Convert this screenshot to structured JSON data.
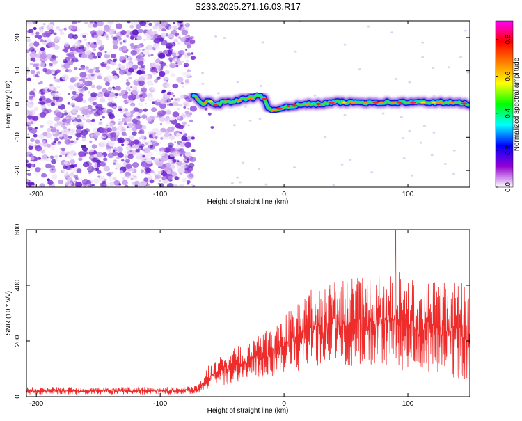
{
  "title": "S233.2025.271.16.03.R17",
  "chart_data": [
    {
      "type": "heatmap",
      "xlabel": "Height of straight line (km)",
      "ylabel": "Frequency (Hz)",
      "xlim": [
        -208,
        150
      ],
      "ylim": [
        -25,
        25
      ],
      "xticks": [
        -200,
        -100,
        0,
        100
      ],
      "yticks": [
        -20,
        -10,
        0,
        10,
        20
      ],
      "noise_region_x": [
        -208,
        -73
      ],
      "signal_track": {
        "x": [
          -73,
          -66,
          -60,
          -55,
          -50,
          -45,
          -40,
          -35,
          -30,
          -25,
          -20,
          -16,
          -13,
          -10,
          -5,
          0,
          5,
          10,
          20,
          30,
          40,
          50,
          60,
          70,
          80,
          90,
          100,
          110,
          120,
          130,
          140,
          150
        ],
        "freq": [
          2.5,
          0,
          1.0,
          -0.5,
          0.5,
          1.0,
          0.5,
          1.5,
          1.5,
          2.0,
          3.0,
          1.5,
          -1.5,
          -2.0,
          -1.5,
          -1.0,
          -0.5,
          -0.5,
          0,
          0,
          0.5,
          0.5,
          0.5,
          0.5,
          0.5,
          0.5,
          0.5,
          0.5,
          0.5,
          0.5,
          0.3,
          0
        ]
      },
      "colorbar": {
        "label": "Normalized spectral amplitude",
        "range": [
          0.0,
          0.9
        ],
        "ticks": [
          0.0,
          0.2,
          0.4,
          0.6,
          0.8
        ],
        "tick_labels": [
          "0.0",
          "0.2",
          "0.4",
          "0.6",
          "0.8"
        ],
        "colors": [
          "#ffffff",
          "#9400d3",
          "#0000ff",
          "#00ffff",
          "#00ff00",
          "#ffff00",
          "#ff7f00",
          "#ff0000",
          "#ff00ff"
        ]
      }
    },
    {
      "type": "line",
      "xlabel": "Height of straight line (km)",
      "ylabel": "SNR (10 * v/v)",
      "xlim": [
        -208,
        150
      ],
      "ylim": [
        0,
        600
      ],
      "xticks": [
        -200,
        -100,
        0,
        100
      ],
      "yticks": [
        0,
        200,
        400,
        600
      ],
      "line_color": "#ee2c2c",
      "envelope": {
        "x": [
          -208,
          -180,
          -150,
          -120,
          -90,
          -70,
          -65,
          -60,
          -50,
          -40,
          -30,
          -20,
          -10,
          0,
          10,
          20,
          30,
          40,
          50,
          60,
          70,
          80,
          90,
          100,
          110,
          120,
          130,
          140,
          150
        ],
        "low": [
          8,
          8,
          8,
          8,
          8,
          10,
          20,
          30,
          40,
          50,
          55,
          60,
          70,
          80,
          90,
          100,
          100,
          110,
          110,
          100,
          100,
          100,
          100,
          90,
          90,
          80,
          80,
          60,
          50
        ],
        "high": [
          35,
          35,
          35,
          35,
          35,
          40,
          80,
          120,
          150,
          180,
          200,
          220,
          250,
          300,
          330,
          380,
          400,
          420,
          420,
          430,
          420,
          450,
          460,
          430,
          420,
          420,
          420,
          420,
          420
        ]
      },
      "peak": {
        "x": 90,
        "y": 600
      }
    }
  ]
}
